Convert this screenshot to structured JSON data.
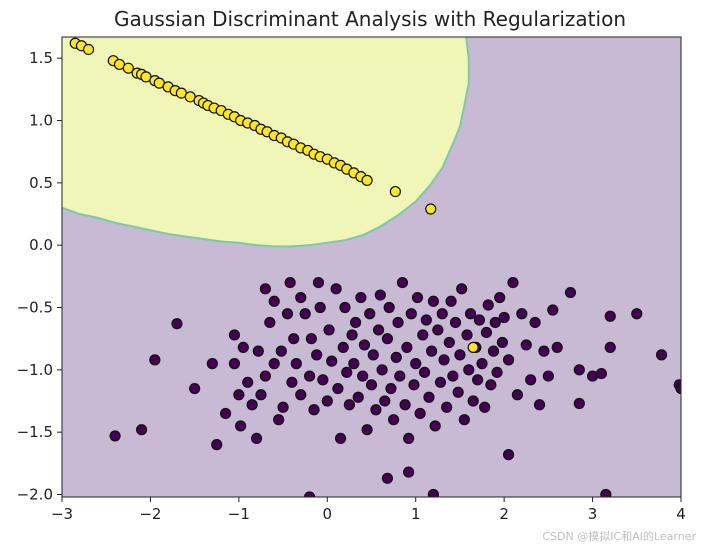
{
  "chart_data": {
    "type": "scatter",
    "title": "Gaussian Discriminant Analysis with Regularization",
    "xlabel": "",
    "ylabel": "",
    "xlim": [
      -3,
      4
    ],
    "ylim": [
      -2.02,
      1.67
    ],
    "xticks": [
      "−3",
      "−2",
      "−1",
      "0",
      "1",
      "2",
      "3",
      "4"
    ],
    "xtick_values": [
      -3,
      -2,
      -1,
      0,
      1,
      2,
      3,
      4
    ],
    "yticks": [
      "−2.0",
      "−1.5",
      "−1.0",
      "−0.5",
      "0.0",
      "0.5",
      "1.0",
      "1.5"
    ],
    "ytick_values": [
      -2.0,
      -1.5,
      -1.0,
      -0.5,
      0.0,
      0.5,
      1.0,
      1.5
    ],
    "grid": false,
    "background_region_color": "#c8b9d5",
    "decision_region_color": "#eff6b8",
    "boundary_color": "#7fc8a8",
    "decision_region_boundary": [
      [
        -3.0,
        0.3
      ],
      [
        -2.8,
        0.25
      ],
      [
        -2.6,
        0.22
      ],
      [
        -2.4,
        0.18
      ],
      [
        -2.2,
        0.15
      ],
      [
        -2.0,
        0.12
      ],
      [
        -1.8,
        0.09
      ],
      [
        -1.6,
        0.07
      ],
      [
        -1.4,
        0.05
      ],
      [
        -1.2,
        0.03
      ],
      [
        -1.0,
        0.02
      ],
      [
        -0.8,
        0.0
      ],
      [
        -0.6,
        -0.01
      ],
      [
        -0.4,
        -0.01
      ],
      [
        -0.2,
        0.0
      ],
      [
        0.0,
        0.02
      ],
      [
        0.2,
        0.04
      ],
      [
        0.4,
        0.08
      ],
      [
        0.6,
        0.15
      ],
      [
        0.8,
        0.24
      ],
      [
        1.0,
        0.35
      ],
      [
        1.15,
        0.47
      ],
      [
        1.3,
        0.62
      ],
      [
        1.4,
        0.78
      ],
      [
        1.5,
        0.95
      ],
      [
        1.55,
        1.12
      ],
      [
        1.6,
        1.3
      ],
      [
        1.6,
        1.5
      ],
      [
        1.57,
        1.67
      ]
    ],
    "series": [
      {
        "class": 0,
        "color": "#440154",
        "points": [
          [
            -2.4,
            -1.53
          ],
          [
            -2.1,
            -1.48
          ],
          [
            -1.95,
            -0.92
          ],
          [
            -1.7,
            -0.63
          ],
          [
            -1.5,
            -1.15
          ],
          [
            -1.3,
            -0.95
          ],
          [
            -1.25,
            -1.6
          ],
          [
            -1.15,
            -1.35
          ],
          [
            -1.05,
            -0.95
          ],
          [
            -1.05,
            -0.72
          ],
          [
            -1.0,
            -1.2
          ],
          [
            -0.98,
            -1.45
          ],
          [
            -0.95,
            -0.82
          ],
          [
            -0.9,
            -1.1
          ],
          [
            -0.85,
            -1.28
          ],
          [
            -0.8,
            -1.55
          ],
          [
            -0.78,
            -0.85
          ],
          [
            -0.75,
            -1.2
          ],
          [
            -0.7,
            -1.05
          ],
          [
            -0.7,
            -0.35
          ],
          [
            -0.65,
            -0.62
          ],
          [
            -0.6,
            -0.45
          ],
          [
            -0.6,
            -0.95
          ],
          [
            -0.55,
            -1.4
          ],
          [
            -0.52,
            -0.85
          ],
          [
            -0.5,
            -1.3
          ],
          [
            -0.45,
            -0.55
          ],
          [
            -0.42,
            -0.3
          ],
          [
            -0.4,
            -1.1
          ],
          [
            -0.38,
            -0.75
          ],
          [
            -0.35,
            -0.95
          ],
          [
            -0.3,
            -0.42
          ],
          [
            -0.3,
            -1.2
          ],
          [
            -0.25,
            -0.55
          ],
          [
            -0.2,
            -1.05
          ],
          [
            -0.18,
            -0.75
          ],
          [
            -0.15,
            -1.32
          ],
          [
            -0.12,
            -0.88
          ],
          [
            -0.1,
            -0.3
          ],
          [
            -0.08,
            -0.5
          ],
          [
            -0.05,
            -1.08
          ],
          [
            0.0,
            -1.25
          ],
          [
            0.02,
            -0.68
          ],
          [
            0.05,
            -0.93
          ],
          [
            0.1,
            -0.35
          ],
          [
            0.12,
            -1.15
          ],
          [
            0.15,
            -1.55
          ],
          [
            0.18,
            -0.82
          ],
          [
            0.2,
            -0.5
          ],
          [
            0.22,
            -1.02
          ],
          [
            0.25,
            -1.28
          ],
          [
            0.28,
            -0.72
          ],
          [
            0.3,
            -0.95
          ],
          [
            0.32,
            -0.62
          ],
          [
            0.35,
            -1.22
          ],
          [
            0.38,
            -0.42
          ],
          [
            0.4,
            -1.05
          ],
          [
            0.42,
            -0.8
          ],
          [
            0.45,
            -1.48
          ],
          [
            0.48,
            -0.55
          ],
          [
            0.5,
            -1.12
          ],
          [
            0.52,
            -0.88
          ],
          [
            0.55,
            -1.32
          ],
          [
            0.58,
            -0.68
          ],
          [
            0.6,
            -0.4
          ],
          [
            0.62,
            -1.0
          ],
          [
            0.65,
            -1.25
          ],
          [
            0.68,
            -0.75
          ],
          [
            0.7,
            -0.5
          ],
          [
            0.72,
            -1.15
          ],
          [
            0.75,
            -1.4
          ],
          [
            0.78,
            -0.9
          ],
          [
            0.8,
            -0.62
          ],
          [
            0.82,
            -1.05
          ],
          [
            0.85,
            -0.3
          ],
          [
            0.88,
            -1.28
          ],
          [
            0.9,
            -0.82
          ],
          [
            0.92,
            -1.55
          ],
          [
            0.95,
            -0.55
          ],
          [
            0.98,
            -1.12
          ],
          [
            1.0,
            -0.95
          ],
          [
            1.02,
            -0.42
          ],
          [
            1.05,
            -1.35
          ],
          [
            1.08,
            -0.72
          ],
          [
            1.1,
            -1.02
          ],
          [
            1.12,
            -0.6
          ],
          [
            1.15,
            -1.22
          ],
          [
            1.18,
            -0.85
          ],
          [
            1.2,
            -0.45
          ],
          [
            1.22,
            -1.45
          ],
          [
            1.25,
            -0.68
          ],
          [
            1.28,
            -1.1
          ],
          [
            1.3,
            -0.55
          ],
          [
            1.32,
            -0.92
          ],
          [
            1.35,
            -1.3
          ],
          [
            1.38,
            -0.78
          ],
          [
            1.4,
            -0.45
          ],
          [
            1.42,
            -1.05
          ],
          [
            1.45,
            -0.62
          ],
          [
            1.48,
            -1.18
          ],
          [
            1.5,
            -0.88
          ],
          [
            1.52,
            -0.35
          ],
          [
            1.55,
            -1.4
          ],
          [
            1.58,
            -0.72
          ],
          [
            1.6,
            -1.0
          ],
          [
            1.62,
            -0.55
          ],
          [
            1.65,
            -1.25
          ],
          [
            1.68,
            -0.82
          ],
          [
            1.7,
            -1.08
          ],
          [
            1.72,
            -0.6
          ],
          [
            1.75,
            -0.95
          ],
          [
            1.78,
            -1.3
          ],
          [
            1.8,
            -0.7
          ],
          [
            1.82,
            -0.48
          ],
          [
            1.85,
            -1.12
          ],
          [
            1.88,
            -0.85
          ],
          [
            1.9,
            -0.62
          ],
          [
            1.92,
            -1.02
          ],
          [
            1.95,
            -0.42
          ],
          [
            1.98,
            -0.78
          ],
          [
            2.0,
            -0.58
          ],
          [
            2.05,
            -1.68
          ],
          [
            2.05,
            -0.92
          ],
          [
            2.1,
            -0.3
          ],
          [
            2.15,
            -1.2
          ],
          [
            2.2,
            -0.55
          ],
          [
            2.25,
            -0.8
          ],
          [
            2.3,
            -1.08
          ],
          [
            2.35,
            -0.62
          ],
          [
            2.4,
            -1.28
          ],
          [
            2.45,
            -0.85
          ],
          [
            2.5,
            -1.05
          ],
          [
            2.55,
            -0.52
          ],
          [
            2.6,
            -0.82
          ],
          [
            2.75,
            -0.38
          ],
          [
            2.85,
            -1.0
          ],
          [
            2.85,
            -1.27
          ],
          [
            3.0,
            -1.05
          ],
          [
            3.1,
            -1.03
          ],
          [
            3.2,
            -0.82
          ],
          [
            3.2,
            -0.57
          ],
          [
            3.5,
            -0.55
          ],
          [
            3.78,
            -0.88
          ],
          [
            3.98,
            -1.12
          ],
          [
            4.0,
            -1.15
          ],
          [
            0.68,
            -1.87
          ],
          [
            0.92,
            -1.82
          ],
          [
            1.2,
            -2.0
          ],
          [
            3.15,
            -2.0
          ],
          [
            -0.2,
            -2.02
          ]
        ]
      },
      {
        "class": 1,
        "color": "#fde725",
        "points": [
          [
            -2.85,
            1.62
          ],
          [
            -2.78,
            1.6
          ],
          [
            -2.7,
            1.57
          ],
          [
            -2.42,
            1.48
          ],
          [
            -2.35,
            1.45
          ],
          [
            -2.25,
            1.42
          ],
          [
            -2.15,
            1.38
          ],
          [
            -2.1,
            1.37
          ],
          [
            -2.05,
            1.35
          ],
          [
            -1.95,
            1.32
          ],
          [
            -1.9,
            1.3
          ],
          [
            -1.8,
            1.27
          ],
          [
            -1.72,
            1.24
          ],
          [
            -1.65,
            1.22
          ],
          [
            -1.55,
            1.19
          ],
          [
            -1.45,
            1.16
          ],
          [
            -1.4,
            1.14
          ],
          [
            -1.35,
            1.12
          ],
          [
            -1.28,
            1.1
          ],
          [
            -1.2,
            1.08
          ],
          [
            -1.12,
            1.05
          ],
          [
            -1.05,
            1.03
          ],
          [
            -0.98,
            1.0
          ],
          [
            -0.9,
            0.98
          ],
          [
            -0.82,
            0.96
          ],
          [
            -0.75,
            0.93
          ],
          [
            -0.68,
            0.91
          ],
          [
            -0.6,
            0.88
          ],
          [
            -0.52,
            0.86
          ],
          [
            -0.45,
            0.83
          ],
          [
            -0.38,
            0.81
          ],
          [
            -0.3,
            0.78
          ],
          [
            -0.22,
            0.76
          ],
          [
            -0.15,
            0.73
          ],
          [
            -0.08,
            0.71
          ],
          [
            0.0,
            0.69
          ],
          [
            0.08,
            0.66
          ],
          [
            0.15,
            0.64
          ],
          [
            0.22,
            0.61
          ],
          [
            0.3,
            0.58
          ],
          [
            0.38,
            0.55
          ],
          [
            0.45,
            0.52
          ],
          [
            0.77,
            0.43
          ],
          [
            1.17,
            0.29
          ],
          [
            1.65,
            -0.82
          ]
        ]
      }
    ]
  },
  "watermark": "CSDN @模拟IC和AI的Learner"
}
